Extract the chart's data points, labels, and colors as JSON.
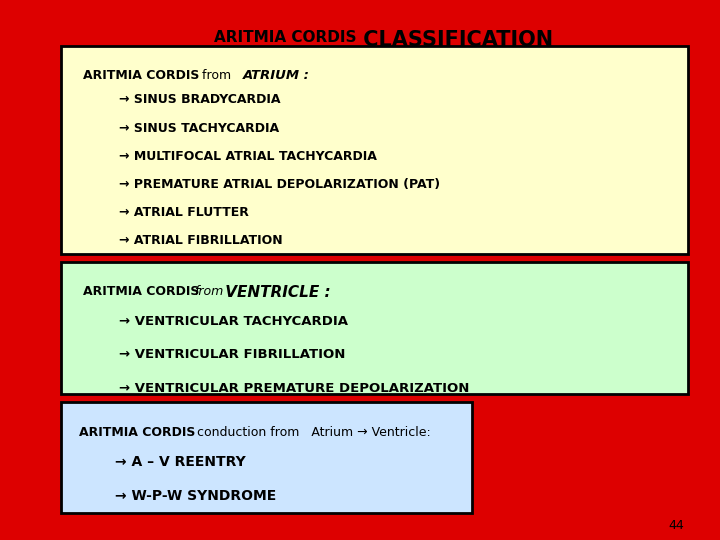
{
  "title_small": "ARITMIA CORDIS",
  "title_large": " CLASSIFICATION",
  "bg_color": "#DD0000",
  "box1_color": "#FFFFCC",
  "box2_color": "#CCFFCC",
  "box3_color": "#CCE5FF",
  "box1_header_bold": "ARITMIA CORDIS",
  "box1_header_from": "  from  ",
  "box1_header_italic": "ATRIUM :",
  "box1_items": [
    "→ SINUS BRADYCARDIA",
    "→ SINUS TACHYCARDIA",
    "→ MULTIFOCAL ATRIAL TACHYCARDIA",
    "→ PREMATURE ATRIAL DEPOLARIZATION (PAT)",
    "→ ATRIAL FLUTTER",
    "→ ATRIAL FIBRILLATION"
  ],
  "box2_header_bold": "ARITMIA CORDIS",
  "box2_header_from": "from",
  "box2_header_italic": " VENTRICLE :",
  "box2_items": [
    "→ VENTRICULAR TACHYCARDIA",
    "→ VENTRICULAR FIBRILLATION",
    "→ VENTRICULAR PREMATURE DEPOLARIZATION"
  ],
  "box3_header_bold": "ARITMIA CORDIS",
  "box3_header_rest": "  conduction from   Atrium → Ventricle:",
  "box3_items": [
    "→ A – V REENTRY",
    "→ W-P-W SYNDROME"
  ],
  "page_num": "44"
}
